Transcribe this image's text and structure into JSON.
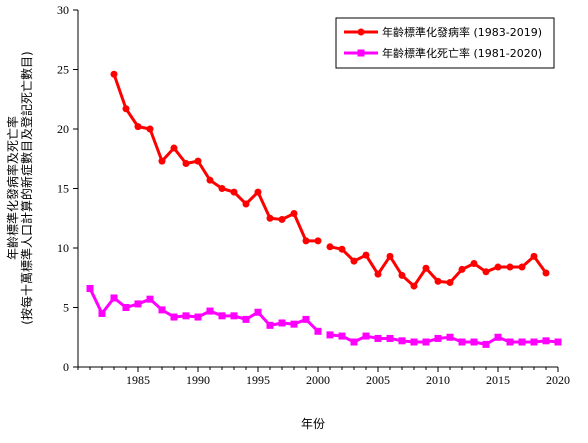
{
  "chart_data": {
    "type": "line",
    "xlabel": "年份",
    "ylabel_line1": "年齡標準化發病率及死亡率",
    "ylabel_line2": "(按每十萬標準人口計算的新症數目及登記死亡數目)",
    "xlim": [
      1980,
      2020
    ],
    "ylim": [
      0,
      30
    ],
    "xticks": [
      1985,
      1990,
      1995,
      2000,
      2005,
      2010,
      2015,
      2020
    ],
    "yticks": [
      0,
      5,
      10,
      15,
      20,
      25,
      30
    ],
    "grid": false,
    "legend_position": "top-right",
    "series": [
      {
        "name": "年齡標準化發病率 (1983-2019)",
        "color": "#ff0000",
        "marker": "circle",
        "segments": [
          {
            "x": [
              1983,
              1984,
              1985,
              1986,
              1987,
              1988,
              1989,
              1990,
              1991,
              1992,
              1993,
              1994,
              1995,
              1996,
              1997,
              1998,
              1999,
              2000
            ],
            "y": [
              24.6,
              21.7,
              20.2,
              20.0,
              17.3,
              18.4,
              17.1,
              17.3,
              15.7,
              15.0,
              14.7,
              13.7,
              14.7,
              12.5,
              12.4,
              12.9,
              10.6,
              10.6
            ]
          },
          {
            "x": [
              2001,
              2002,
              2003,
              2004,
              2005,
              2006,
              2007,
              2008,
              2009,
              2010,
              2011,
              2012,
              2013,
              2014,
              2015,
              2016,
              2017,
              2018,
              2019
            ],
            "y": [
              10.1,
              9.9,
              8.9,
              9.4,
              7.8,
              9.3,
              7.7,
              6.8,
              8.3,
              7.2,
              7.1,
              8.2,
              8.7,
              8.0,
              8.4,
              8.4,
              8.4,
              9.3,
              7.9
            ]
          }
        ]
      },
      {
        "name": "年齡標準化死亡率 (1981-2020)",
        "color": "#ff00ff",
        "marker": "square",
        "segments": [
          {
            "x": [
              1981,
              1982,
              1983,
              1984,
              1985,
              1986,
              1987,
              1988,
              1989,
              1990,
              1991,
              1992,
              1993,
              1994,
              1995,
              1996,
              1997,
              1998,
              1999,
              2000
            ],
            "y": [
              6.6,
              4.5,
              5.8,
              5.0,
              5.3,
              5.7,
              4.8,
              4.2,
              4.3,
              4.2,
              4.7,
              4.3,
              4.3,
              4.0,
              4.6,
              3.5,
              3.7,
              3.6,
              4.0,
              3.0
            ]
          },
          {
            "x": [
              2001,
              2002,
              2003,
              2004,
              2005,
              2006,
              2007,
              2008,
              2009,
              2010,
              2011,
              2012,
              2013,
              2014,
              2015,
              2016,
              2017,
              2018,
              2019,
              2020
            ],
            "y": [
              2.7,
              2.6,
              2.1,
              2.6,
              2.4,
              2.4,
              2.2,
              2.1,
              2.1,
              2.4,
              2.5,
              2.1,
              2.1,
              1.9,
              2.5,
              2.1,
              2.1,
              2.1,
              2.2,
              2.1
            ]
          }
        ]
      }
    ]
  }
}
